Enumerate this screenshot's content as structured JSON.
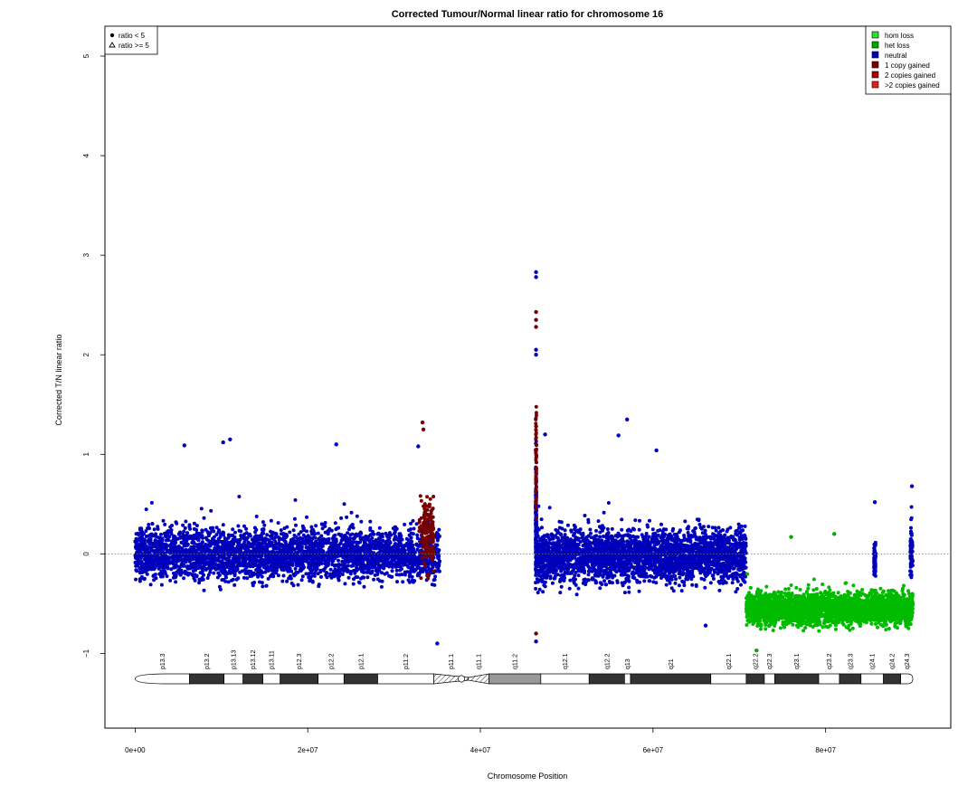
{
  "chart_data": {
    "type": "scatter",
    "title": "Corrected Tumour/Normal linear ratio for chromosome  16",
    "xlabel": "Chromosome Position",
    "ylabel": "Corrected T/N linear ratio",
    "xlim": [
      -3500000,
      94500000
    ],
    "ylim": [
      -1.75,
      5.3
    ],
    "reference_line_y": 0,
    "x_ticks": [
      {
        "value": 0,
        "label": "0e+00"
      },
      {
        "value": 20000000,
        "label": "2e+07"
      },
      {
        "value": 40000000,
        "label": "4e+07"
      },
      {
        "value": 60000000,
        "label": "6e+07"
      },
      {
        "value": 80000000,
        "label": "8e+07"
      }
    ],
    "y_ticks": [
      {
        "value": -1,
        "label": "−1"
      },
      {
        "value": 0,
        "label": "0"
      },
      {
        "value": 1,
        "label": "1"
      },
      {
        "value": 2,
        "label": "2"
      },
      {
        "value": 3,
        "label": "3"
      },
      {
        "value": 4,
        "label": "4"
      },
      {
        "value": 5,
        "label": "5"
      }
    ],
    "shape_legend": {
      "placement": "top-left",
      "items": [
        {
          "label": "ratio < 5",
          "symbol": "dot"
        },
        {
          "label": "ratio >= 5",
          "symbol": "triangle"
        }
      ]
    },
    "color_legend": {
      "placement": "top-right",
      "items": [
        {
          "label": "hom loss",
          "color": "#33dd33"
        },
        {
          "label": "het loss",
          "color": "#00aa00"
        },
        {
          "label": "neutral",
          "color": "#0000bb"
        },
        {
          "label": "1 copy gained",
          "color": "#770000"
        },
        {
          "label": "2 copies gained",
          "color": "#aa0000"
        },
        {
          "label": ">2 copies gained",
          "color": "#dd2222"
        }
      ]
    },
    "clusters": [
      {
        "state": "neutral",
        "color": "#0000bb",
        "x_start": 0,
        "x_end": 35300000,
        "y_center": 0,
        "y_spread": 0.42,
        "n": 3200
      },
      {
        "state": "1 copy gained",
        "color": "#770000",
        "x_start": 32900000,
        "x_end": 34600000,
        "y_center": 0.2,
        "y_spread": 0.55,
        "n": 150
      },
      {
        "state": "neutral",
        "color": "#0000bb",
        "x_start": 46400000,
        "x_end": 46500000,
        "y_center": 0.3,
        "y_spread": 0.9,
        "n": 160
      },
      {
        "state": "1 copy gained",
        "color": "#770000",
        "x_start": 46400000,
        "x_end": 46500000,
        "y_center": 0.9,
        "y_spread": 0.9,
        "n": 60
      },
      {
        "state": "neutral",
        "color": "#0000bb",
        "x_start": 46500000,
        "x_end": 70800000,
        "y_center": -0.02,
        "y_spread": 0.42,
        "n": 2800
      },
      {
        "state": "het loss",
        "color": "#00bb00",
        "x_start": 70800000,
        "x_end": 90100000,
        "y_center": -0.55,
        "y_spread": 0.26,
        "n": 2800
      },
      {
        "state": "neutral",
        "color": "#0000bb",
        "x_start": 85600000,
        "x_end": 85800000,
        "y_center": -0.05,
        "y_spread": 0.3,
        "n": 60
      },
      {
        "state": "neutral",
        "color": "#0000bb",
        "x_start": 89800000,
        "x_end": 90100000,
        "y_center": 0.0,
        "y_spread": 0.45,
        "n": 70
      }
    ],
    "notable_points": [
      {
        "x": 46450000,
        "y": 2.83,
        "state": "neutral"
      },
      {
        "x": 46450000,
        "y": 2.78,
        "state": "neutral"
      },
      {
        "x": 46450000,
        "y": 2.43,
        "state": "1 copy gained"
      },
      {
        "x": 46450000,
        "y": 2.35,
        "state": "1 copy gained"
      },
      {
        "x": 46450000,
        "y": 2.28,
        "state": "1 copy gained"
      },
      {
        "x": 46450000,
        "y": 2.05,
        "state": "neutral"
      },
      {
        "x": 46450000,
        "y": 2.0,
        "state": "neutral"
      },
      {
        "x": 46450000,
        "y": -0.8,
        "state": "1 copy gained"
      },
      {
        "x": 46450000,
        "y": -0.88,
        "state": "neutral"
      },
      {
        "x": 33300000,
        "y": 1.32,
        "state": "1 copy gained"
      },
      {
        "x": 33400000,
        "y": 1.25,
        "state": "1 copy gained"
      },
      {
        "x": 32800000,
        "y": 1.08,
        "state": "neutral"
      },
      {
        "x": 35000000,
        "y": -0.9,
        "state": "neutral"
      },
      {
        "x": 10200000,
        "y": 1.12,
        "state": "neutral"
      },
      {
        "x": 11000000,
        "y": 1.15,
        "state": "neutral"
      },
      {
        "x": 5700000,
        "y": 1.09,
        "state": "neutral"
      },
      {
        "x": 23300000,
        "y": 1.1,
        "state": "neutral"
      },
      {
        "x": 47500000,
        "y": 1.2,
        "state": "neutral"
      },
      {
        "x": 57000000,
        "y": 1.35,
        "state": "neutral"
      },
      {
        "x": 56000000,
        "y": 1.19,
        "state": "neutral"
      },
      {
        "x": 60400000,
        "y": 1.04,
        "state": "neutral"
      },
      {
        "x": 66100000,
        "y": -0.72,
        "state": "neutral"
      },
      {
        "x": 72000000,
        "y": -0.97,
        "state": "het loss"
      },
      {
        "x": 76000000,
        "y": 0.17,
        "state": "het loss"
      },
      {
        "x": 81000000,
        "y": 0.2,
        "state": "het loss"
      },
      {
        "x": 85700000,
        "y": 0.52,
        "state": "neutral"
      },
      {
        "x": 90000000,
        "y": 0.68,
        "state": "neutral"
      }
    ],
    "ideogram": {
      "x_end": 90100000,
      "bands": [
        {
          "name": "p13.3",
          "start": 0,
          "end": 6300000,
          "stain": "gneg"
        },
        {
          "name": "p13.2",
          "start": 6300000,
          "end": 10300000,
          "stain": "gpos"
        },
        {
          "name": "p13.13",
          "start": 10300000,
          "end": 12500000,
          "stain": "gneg"
        },
        {
          "name": "p13.12",
          "start": 12500000,
          "end": 14800000,
          "stain": "gpos"
        },
        {
          "name": "p13.11",
          "start": 14800000,
          "end": 16800000,
          "stain": "gneg"
        },
        {
          "name": "p12.3",
          "start": 16800000,
          "end": 21200000,
          "stain": "gpos"
        },
        {
          "name": "p12.2",
          "start": 21200000,
          "end": 24200000,
          "stain": "gneg"
        },
        {
          "name": "p12.1",
          "start": 24200000,
          "end": 28100000,
          "stain": "gpos"
        },
        {
          "name": "p11.2",
          "start": 28100000,
          "end": 34600000,
          "stain": "gneg"
        },
        {
          "name": "p11.1",
          "start": 34600000,
          "end": 38600000,
          "stain": "acen"
        },
        {
          "name": "q11.1",
          "start": 38600000,
          "end": 41000000,
          "stain": "acen"
        },
        {
          "name": "q11.2",
          "start": 41000000,
          "end": 47000000,
          "stain": "gvar"
        },
        {
          "name": "q12.1",
          "start": 47000000,
          "end": 52600000,
          "stain": "gneg"
        },
        {
          "name": "q12.2",
          "start": 52600000,
          "end": 56700000,
          "stain": "gpos"
        },
        {
          "name": "q13",
          "start": 56700000,
          "end": 57400000,
          "stain": "gneg"
        },
        {
          "name": "q21",
          "start": 57400000,
          "end": 66700000,
          "stain": "gpos"
        },
        {
          "name": "q22.1",
          "start": 66700000,
          "end": 70800000,
          "stain": "gneg"
        },
        {
          "name": "q22.2",
          "start": 70800000,
          "end": 72900000,
          "stain": "gpos"
        },
        {
          "name": "q22.3",
          "start": 72900000,
          "end": 74100000,
          "stain": "gneg"
        },
        {
          "name": "q23.1",
          "start": 74100000,
          "end": 79200000,
          "stain": "gpos"
        },
        {
          "name": "q23.2",
          "start": 79200000,
          "end": 81600000,
          "stain": "gneg"
        },
        {
          "name": "q23.3",
          "start": 81600000,
          "end": 84100000,
          "stain": "gpos"
        },
        {
          "name": "q24.1",
          "start": 84100000,
          "end": 86700000,
          "stain": "gneg"
        },
        {
          "name": "q24.2",
          "start": 86700000,
          "end": 88700000,
          "stain": "gpos"
        },
        {
          "name": "q24.3",
          "start": 88700000,
          "end": 90100000,
          "stain": "gneg"
        }
      ]
    }
  }
}
